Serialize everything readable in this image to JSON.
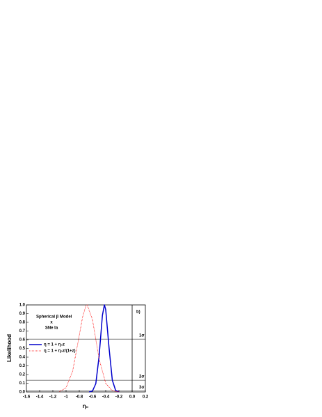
{
  "chart_data": {
    "type": "line",
    "annotations": [
      "Spherical β Model",
      "x",
      "SNe Ia",
      "b)"
    ],
    "xlabel": "η₀",
    "ylabel": "Likelihood",
    "series": [
      {
        "name": "η = 1 + η₀z",
        "color": "#0000cc",
        "style": "solid",
        "x": [
          -0.65,
          -0.6,
          -0.55,
          -0.5,
          -0.45,
          -0.42,
          -0.4,
          -0.35,
          -0.3,
          -0.25,
          -0.2
        ],
        "values": [
          0,
          0.011,
          0.095,
          0.41,
          0.88,
          1,
          0.946,
          0.51,
          0.135,
          0.018,
          0.001
        ]
      },
      {
        "name": "η = 1 + η₀z/(1+z)",
        "color": "#ff0000",
        "style": "dotted",
        "x": [
          -1.1,
          -1.0,
          -0.9,
          -0.8,
          -0.75,
          -0.7,
          -0.68,
          -0.6,
          -0.5,
          -0.4,
          -0.3,
          -0.2
        ],
        "values": [
          0.005,
          0.048,
          0.24,
          0.65,
          0.86,
          0.99,
          1,
          0.83,
          0.38,
          0.099,
          0.014,
          0.001
        ]
      }
    ],
    "reference_lines": [
      {
        "value": 0.607,
        "label": "1σ"
      },
      {
        "value": 0.135,
        "label": "2σ"
      },
      {
        "value": 0.011,
        "label": "3σ"
      }
    ],
    "vline": 0,
    "xlim": [
      -1.6,
      0.2
    ],
    "xticks": [
      -1.6,
      -1.4,
      -1.2,
      -1.0,
      -0.8,
      -0.6,
      -0.4,
      -0.2,
      {
        "value": 0,
        "label": "0.0"
      },
      0.2
    ],
    "ylim": [
      0,
      1
    ],
    "yticks": [
      {
        "value": 0,
        "label": "0.0"
      },
      0.1,
      0.2,
      0.3,
      0.4,
      0.5,
      0.6,
      0.7,
      0.8,
      0.9,
      {
        "value": 1,
        "label": "1.0"
      }
    ]
  }
}
